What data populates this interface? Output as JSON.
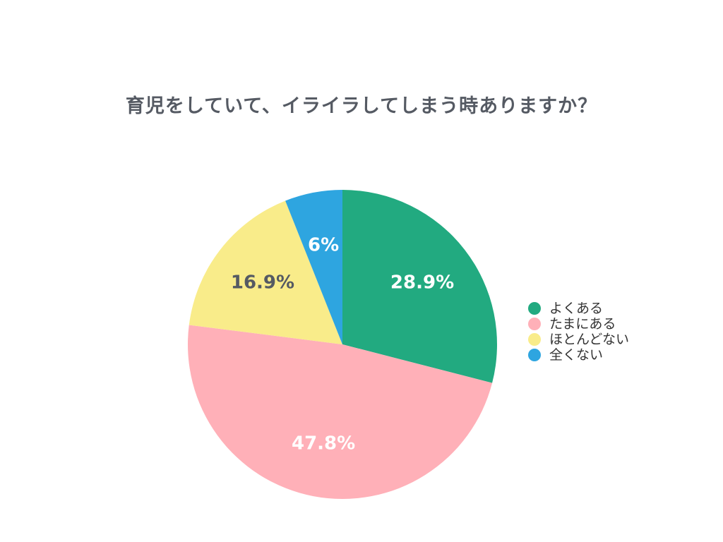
{
  "chart_data": {
    "type": "pie",
    "title": "育児をしていて、イライラしてしまう時ありますか？",
    "labels": [
      "よくある",
      "たまにある",
      "ほとんどない",
      "全くない"
    ],
    "values": [
      28.9,
      47.8,
      16.9,
      6
    ],
    "value_labels": [
      "28.9%",
      "47.8%",
      "16.9%",
      "6%"
    ],
    "colors": [
      "#22aa80",
      "#ffb0b8",
      "#f9ec8a",
      "#2ea5e0"
    ],
    "label_colors": [
      "#ffffff",
      "#ffffff",
      "#555a63",
      "#ffffff"
    ],
    "start": "12 o'clock",
    "direction": "clockwise",
    "legend_position": "right"
  }
}
